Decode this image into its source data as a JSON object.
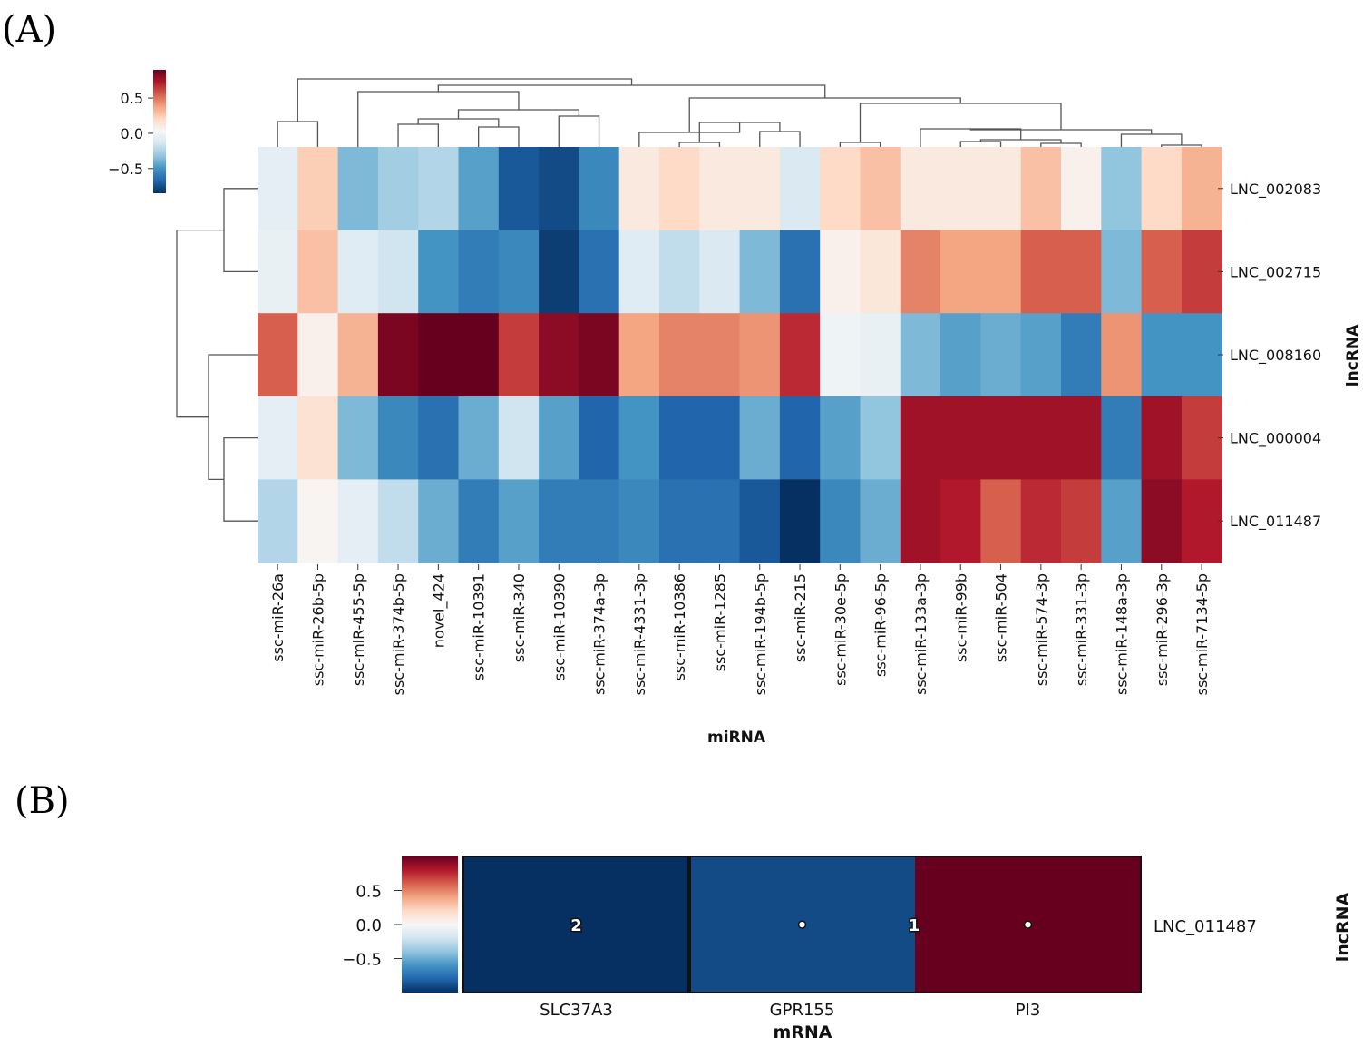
{
  "chart_data": [
    {
      "panel": "(A)",
      "type": "heatmap",
      "xlabel": "miRNA",
      "ylabel": "lncRNA",
      "columns": [
        "ssc-miR-26a",
        "ssc-miR-26b-5p",
        "ssc-miR-455-5p",
        "ssc-miR-374b-5p",
        "novel_424",
        "ssc-miR-10391",
        "ssc-miR-340",
        "ssc-miR-10390",
        "ssc-miR-374a-3p",
        "ssc-miR-4331-3p",
        "ssc-miR-10386",
        "ssc-miR-1285",
        "ssc-miR-194b-5p",
        "ssc-miR-215",
        "ssc-miR-30e-5p",
        "ssc-miR-96-5p",
        "ssc-miR-133a-3p",
        "ssc-miR-99b",
        "ssc-miR-504",
        "ssc-miR-574-3p",
        "ssc-miR-331-3p",
        "ssc-miR-148a-3p",
        "ssc-miR-296-3p",
        "ssc-miR-7134-5p"
      ],
      "rows": [
        "LNC_002083",
        "LNC_002715",
        "LNC_008160",
        "LNC_000004",
        "LNC_011487"
      ],
      "values": [
        [
          -0.1,
          0.25,
          -0.45,
          -0.35,
          -0.3,
          -0.55,
          -0.85,
          -0.9,
          -0.65,
          0.1,
          0.2,
          0.1,
          0.1,
          -0.15,
          0.2,
          0.3,
          0.1,
          0.1,
          0.1,
          0.3,
          0.05,
          -0.4,
          0.2,
          0.35
        ],
        [
          -0.08,
          0.3,
          -0.12,
          -0.2,
          -0.6,
          -0.7,
          -0.65,
          -0.95,
          -0.75,
          -0.12,
          -0.25,
          -0.15,
          -0.45,
          -0.75,
          0.05,
          0.12,
          0.5,
          0.4,
          0.4,
          0.6,
          0.6,
          -0.45,
          0.6,
          0.7
        ],
        [
          0.6,
          0.05,
          0.35,
          0.95,
          1.0,
          1.0,
          0.7,
          0.9,
          0.95,
          0.4,
          0.5,
          0.5,
          0.45,
          0.75,
          -0.05,
          -0.08,
          -0.45,
          -0.55,
          -0.5,
          -0.55,
          -0.7,
          0.45,
          -0.6,
          -0.6
        ],
        [
          -0.1,
          0.15,
          -0.45,
          -0.65,
          -0.75,
          -0.5,
          -0.2,
          -0.55,
          -0.8,
          -0.6,
          -0.8,
          -0.8,
          -0.5,
          -0.8,
          -0.55,
          -0.4,
          0.85,
          0.85,
          0.85,
          0.85,
          0.85,
          -0.7,
          0.85,
          0.7
        ],
        [
          -0.3,
          0.02,
          -0.1,
          -0.25,
          -0.5,
          -0.7,
          -0.55,
          -0.7,
          -0.7,
          -0.65,
          -0.75,
          -0.75,
          -0.85,
          -1.0,
          -0.65,
          -0.5,
          0.85,
          0.8,
          0.6,
          0.75,
          0.7,
          -0.55,
          0.9,
          0.8
        ]
      ],
      "colorbar": {
        "ticks": [
          0.5,
          0.0,
          -0.5
        ],
        "tick_labels": [
          "0.5",
          "0.0",
          "−0.5"
        ],
        "range": [
          -0.85,
          0.9
        ]
      },
      "colormap": "RdBu_r"
    },
    {
      "panel": "(B)",
      "type": "heatmap",
      "xlabel": "mRNA",
      "ylabel": "lncRNA",
      "columns": [
        "SLC37A3",
        "GPR155",
        "PI3"
      ],
      "rows": [
        "LNC_011487"
      ],
      "values": [
        [
          -1.0,
          -0.9,
          1.0
        ]
      ],
      "annotations": [
        {
          "col": 0,
          "text": "2"
        },
        {
          "col": 1,
          "text": "•"
        },
        {
          "col": 1,
          "text": "1"
        },
        {
          "col": 2,
          "text": "•"
        }
      ],
      "colorbar": {
        "ticks": [
          0.5,
          0.0,
          -0.5
        ],
        "tick_labels": [
          "0.5",
          "0.0",
          "−0.5"
        ],
        "range": [
          -1.0,
          1.0
        ]
      },
      "colormap": "RdBu_r"
    }
  ],
  "colors": {
    "colormap_stops": [
      "#053061",
      "#2166ac",
      "#4393c3",
      "#92c5de",
      "#d1e5f0",
      "#f7f7f7",
      "#fddbc7",
      "#f4a582",
      "#d6604d",
      "#b2182b",
      "#67001f"
    ]
  }
}
